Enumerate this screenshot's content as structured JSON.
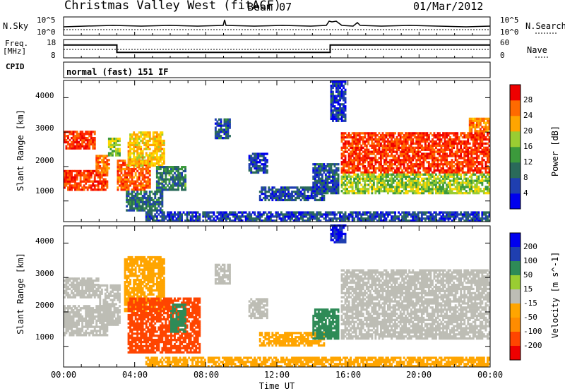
{
  "header": {
    "station": "Christmas Valley West (fitACF)",
    "beam": "Beam 07",
    "date": "01/Mar/2012"
  },
  "top_panels": {
    "nsky_label": "N.Sky",
    "nsky_ticks": [
      "10^5",
      "10^0"
    ],
    "nsearch_label": "N.Search",
    "nsearch_ticks": [
      "10^5",
      "10^0"
    ],
    "freq_label": "Freq.",
    "freq_unit": "[MHz]",
    "freq_ticks": [
      "18",
      "8"
    ],
    "nave_label": "Nave",
    "nave_ticks": [
      "60",
      "0"
    ],
    "cpid_label": "CPID",
    "cpid_text": "normal (fast) 151 IF"
  },
  "colors": {
    "power_scale": [
      "#0000ee",
      "#1f3fb0",
      "#2a6a5a",
      "#3c9a3c",
      "#9acd32",
      "#ffd700",
      "#ffa500",
      "#ff6a00",
      "#ff2a00",
      "#ee0000"
    ],
    "velocity_scale": [
      "#ee0000",
      "#ff4500",
      "#ff8c00",
      "#ffa500",
      "#bdbdb5",
      "#9acd32",
      "#2e8b57",
      "#1f3fb0",
      "#0000ee"
    ]
  },
  "chart_data": [
    {
      "type": "heatmap",
      "name": "power",
      "ylabel": "Slant Range [km]",
      "yticks": [
        "1000",
        "2000",
        "3000",
        "4000"
      ],
      "ylim": [
        400,
        4500
      ],
      "xlim": [
        0,
        24
      ],
      "colorbar_label": "Power [dB]",
      "colorbar_ticks": [
        "4",
        "8",
        "12",
        "16",
        "20",
        "24",
        "28"
      ],
      "colorbar_range": [
        0,
        32
      ],
      "regions": [
        {
          "t": [
            0.0,
            1.8
          ],
          "r": [
            2500,
            3000
          ],
          "value": 27
        },
        {
          "t": [
            0.0,
            2.5
          ],
          "r": [
            1300,
            1900
          ],
          "value": 27
        },
        {
          "t": [
            1.8,
            2.6
          ],
          "r": [
            1800,
            2300
          ],
          "value": 24
        },
        {
          "t": [
            2.5,
            3.2
          ],
          "r": [
            2300,
            2800
          ],
          "value": 14
        },
        {
          "t": [
            3.0,
            4.8
          ],
          "r": [
            1300,
            2200
          ],
          "value": 25
        },
        {
          "t": [
            3.6,
            5.6
          ],
          "r": [
            2000,
            3000
          ],
          "value": 19
        },
        {
          "t": [
            5.2,
            6.8
          ],
          "r": [
            1300,
            2000
          ],
          "value": 9
        },
        {
          "t": [
            3.5,
            5.5
          ],
          "r": [
            700,
            1300
          ],
          "value": 8
        },
        {
          "t": [
            8.5,
            9.3
          ],
          "r": [
            2800,
            3400
          ],
          "value": 6
        },
        {
          "t": [
            10.4,
            11.4
          ],
          "r": [
            1800,
            2400
          ],
          "value": 5
        },
        {
          "t": [
            11.0,
            14.6
          ],
          "r": [
            1000,
            1400
          ],
          "value": 5
        },
        {
          "t": [
            14.0,
            15.4
          ],
          "r": [
            1200,
            2100
          ],
          "value": 6
        },
        {
          "t": [
            15.6,
            24.0
          ],
          "r": [
            1800,
            3000
          ],
          "value": 27
        },
        {
          "t": [
            15.6,
            24.0
          ],
          "r": [
            1200,
            1800
          ],
          "value": 14
        },
        {
          "t": [
            22.8,
            24.0
          ],
          "r": [
            3000,
            3400
          ],
          "value": 22
        },
        {
          "t": [
            4.6,
            24.0
          ],
          "r": [
            400,
            650
          ],
          "value": 5
        },
        {
          "t": [
            15.0,
            15.8
          ],
          "r": [
            3300,
            4500
          ],
          "value": 4
        }
      ]
    },
    {
      "type": "heatmap",
      "name": "velocity",
      "ylabel": "Slant Range [km]",
      "yticks": [
        "1000",
        "2000",
        "3000",
        "4000"
      ],
      "ylim": [
        400,
        4500
      ],
      "xlim": [
        0,
        24
      ],
      "xlabel": "Time UT",
      "xticks": [
        "00:00",
        "04:00",
        "08:00",
        "12:00",
        "16:00",
        "20:00",
        "00:00"
      ],
      "colorbar_label": "Velocity [m s^-1]",
      "colorbar_ticks": [
        "200",
        "100",
        "50",
        "15",
        "-15",
        "-50",
        "-100",
        "-200"
      ],
      "regions": [
        {
          "t": [
            0.0,
            2.5
          ],
          "r": [
            1300,
            2200
          ],
          "value": 0
        },
        {
          "t": [
            0.0,
            2.0
          ],
          "r": [
            2400,
            3000
          ],
          "value": 0
        },
        {
          "t": [
            2.0,
            3.2
          ],
          "r": [
            1600,
            2800
          ],
          "value": 0
        },
        {
          "t": [
            3.4,
            5.6
          ],
          "r": [
            2000,
            3600
          ],
          "value": -30
        },
        {
          "t": [
            3.6,
            7.6
          ],
          "r": [
            800,
            2400
          ],
          "value": -180
        },
        {
          "t": [
            6.0,
            6.8
          ],
          "r": [
            1400,
            2200
          ],
          "value": 60
        },
        {
          "t": [
            8.5,
            9.3
          ],
          "r": [
            2800,
            3400
          ],
          "value": 0
        },
        {
          "t": [
            10.4,
            11.4
          ],
          "r": [
            1800,
            2400
          ],
          "value": 0
        },
        {
          "t": [
            11.0,
            14.6
          ],
          "r": [
            1000,
            1400
          ],
          "value": -30
        },
        {
          "t": [
            14.0,
            15.4
          ],
          "r": [
            1200,
            2100
          ],
          "value": 60
        },
        {
          "t": [
            15.6,
            24.0
          ],
          "r": [
            1800,
            3200
          ],
          "value": 0
        },
        {
          "t": [
            15.6,
            24.0
          ],
          "r": [
            1200,
            1800
          ],
          "value": 0
        },
        {
          "t": [
            4.6,
            24.0
          ],
          "r": [
            400,
            650
          ],
          "value": -30
        },
        {
          "t": [
            15.0,
            15.8
          ],
          "r": [
            4000,
            4500
          ],
          "value": 200
        }
      ]
    },
    {
      "type": "line",
      "name": "frequency",
      "ylim": [
        8,
        18
      ],
      "x": [
        0,
        3.0,
        3.0,
        15.0,
        15.0,
        24
      ],
      "y": [
        15.0,
        15.0,
        11.0,
        11.0,
        15.0,
        15.0
      ]
    }
  ]
}
